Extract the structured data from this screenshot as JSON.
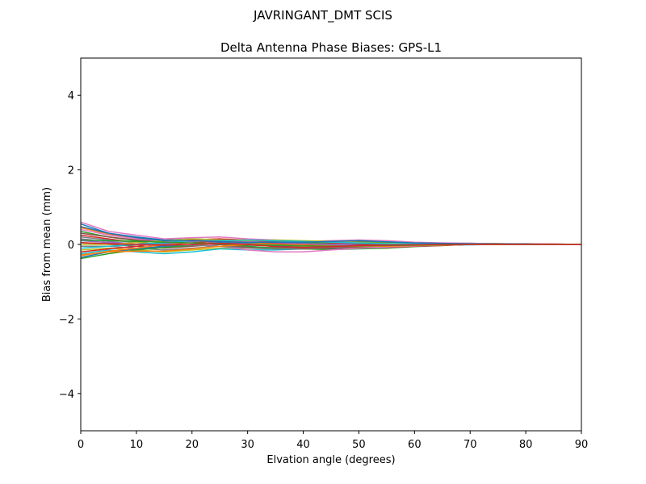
{
  "chart_data": {
    "type": "line",
    "suptitle": "JAVRINGANT_DMT  SCIS",
    "title": "Delta Antenna Phase Biases: GPS-L1",
    "xlabel": "Elvation angle (degrees)",
    "ylabel": "Bias from mean (mm)",
    "xlim": [
      0,
      90
    ],
    "ylim": [
      -5,
      5
    ],
    "xticks": [
      0,
      10,
      20,
      30,
      40,
      50,
      60,
      70,
      80,
      90
    ],
    "yticks": [
      -4,
      -2,
      0,
      2,
      4
    ],
    "grid": false,
    "x": [
      0,
      5,
      10,
      15,
      20,
      25,
      30,
      35,
      40,
      45,
      50,
      55,
      60,
      65,
      70,
      75,
      80,
      85,
      90
    ],
    "series": [
      {
        "color": "#1f77b4",
        "values": [
          0.55,
          0.3,
          0.2,
          0.12,
          0.15,
          0.12,
          0.1,
          0.08,
          0.05,
          0.07,
          0.1,
          0.08,
          0.05,
          0.03,
          0.03,
          0.02,
          0.02,
          0.01,
          0.0
        ]
      },
      {
        "color": "#ff7f0e",
        "values": [
          0.45,
          0.28,
          0.15,
          0.1,
          0.12,
          0.15,
          0.12,
          0.1,
          0.06,
          0.08,
          0.08,
          0.06,
          0.04,
          0.02,
          0.03,
          0.02,
          0.01,
          0.01,
          0.0
        ]
      },
      {
        "color": "#2ca02c",
        "values": [
          0.35,
          0.2,
          0.1,
          0.05,
          0.1,
          0.12,
          0.08,
          0.05,
          0.03,
          0.05,
          0.06,
          0.05,
          0.03,
          0.02,
          0.02,
          0.02,
          0.01,
          0.0,
          0.0
        ]
      },
      {
        "color": "#d62728",
        "values": [
          0.25,
          0.15,
          0.05,
          0.0,
          0.05,
          0.08,
          0.05,
          0.02,
          0.0,
          0.02,
          0.04,
          0.03,
          0.02,
          0.01,
          0.02,
          0.01,
          0.01,
          0.0,
          0.0
        ]
      },
      {
        "color": "#9467bd",
        "values": [
          0.15,
          0.08,
          0.0,
          -0.05,
          0.0,
          0.05,
          0.02,
          0.0,
          -0.02,
          0.0,
          0.02,
          0.02,
          0.01,
          0.0,
          0.01,
          0.01,
          0.0,
          0.0,
          0.0
        ]
      },
      {
        "color": "#8c564b",
        "values": [
          0.05,
          0.0,
          -0.05,
          -0.1,
          -0.05,
          0.0,
          -0.02,
          -0.04,
          -0.05,
          -0.03,
          0.0,
          0.0,
          0.0,
          0.0,
          0.0,
          0.0,
          0.0,
          0.0,
          0.0
        ]
      },
      {
        "color": "#e377c2",
        "values": [
          0.6,
          0.35,
          0.25,
          0.15,
          0.18,
          0.2,
          0.15,
          0.12,
          0.08,
          0.1,
          0.12,
          0.1,
          0.06,
          0.04,
          0.03,
          0.02,
          0.01,
          0.01,
          0.0
        ]
      },
      {
        "color": "#7f7f7f",
        "values": [
          -0.05,
          -0.05,
          -0.1,
          -0.15,
          -0.1,
          -0.05,
          -0.08,
          -0.08,
          -0.08,
          -0.05,
          -0.03,
          -0.02,
          -0.01,
          -0.01,
          0.0,
          0.0,
          0.0,
          0.0,
          0.0
        ]
      },
      {
        "color": "#bcbd22",
        "values": [
          -0.15,
          -0.1,
          -0.15,
          -0.2,
          -0.15,
          -0.1,
          -0.1,
          -0.12,
          -0.1,
          -0.08,
          -0.05,
          -0.04,
          -0.02,
          -0.01,
          0.0,
          0.0,
          0.0,
          0.0,
          0.0
        ]
      },
      {
        "color": "#17becf",
        "values": [
          -0.25,
          -0.15,
          -0.2,
          -0.25,
          -0.2,
          -0.12,
          -0.15,
          -0.15,
          -0.12,
          -0.1,
          -0.08,
          -0.06,
          -0.03,
          -0.02,
          -0.01,
          0.0,
          0.0,
          0.0,
          0.0
        ]
      },
      {
        "color": "#1f77b4",
        "values": [
          -0.35,
          -0.2,
          -0.12,
          -0.05,
          0.0,
          0.05,
          0.0,
          -0.05,
          -0.1,
          -0.12,
          -0.1,
          -0.08,
          -0.05,
          -0.02,
          0.0,
          0.01,
          0.0,
          0.0,
          0.0
        ]
      },
      {
        "color": "#ff7f0e",
        "values": [
          -0.3,
          -0.18,
          -0.1,
          0.0,
          0.08,
          0.1,
          0.05,
          0.0,
          -0.05,
          -0.08,
          -0.08,
          -0.06,
          -0.04,
          -0.02,
          0.0,
          0.01,
          0.0,
          0.0,
          0.0
        ]
      },
      {
        "color": "#2ca02c",
        "values": [
          -0.38,
          -0.25,
          -0.15,
          -0.08,
          -0.02,
          0.0,
          -0.05,
          -0.1,
          -0.12,
          -0.14,
          -0.12,
          -0.1,
          -0.06,
          -0.03,
          0.0,
          0.01,
          0.0,
          0.0,
          0.0
        ]
      },
      {
        "color": "#d62728",
        "values": [
          -0.2,
          -0.12,
          -0.05,
          0.05,
          0.12,
          0.15,
          0.1,
          0.05,
          0.0,
          -0.05,
          -0.08,
          -0.08,
          -0.05,
          -0.03,
          0.0,
          0.01,
          0.0,
          0.0,
          0.0
        ]
      },
      {
        "color": "#9467bd",
        "values": [
          0.1,
          0.05,
          0.0,
          0.02,
          0.08,
          0.12,
          0.08,
          0.05,
          0.02,
          0.0,
          -0.03,
          -0.04,
          -0.03,
          -0.02,
          0.0,
          0.0,
          0.0,
          0.0,
          0.0
        ]
      },
      {
        "color": "#8c564b",
        "values": [
          0.3,
          0.2,
          0.12,
          0.08,
          0.05,
          0.0,
          -0.08,
          -0.12,
          -0.12,
          -0.1,
          -0.08,
          -0.05,
          -0.03,
          -0.01,
          0.0,
          0.0,
          0.0,
          0.0,
          0.0
        ]
      },
      {
        "color": "#e377c2",
        "values": [
          0.4,
          0.25,
          0.15,
          0.1,
          0.05,
          -0.05,
          -0.15,
          -0.2,
          -0.2,
          -0.15,
          -0.1,
          -0.07,
          -0.04,
          -0.02,
          0.0,
          0.0,
          0.0,
          0.0,
          0.0
        ]
      },
      {
        "color": "#7f7f7f",
        "values": [
          0.2,
          0.12,
          0.05,
          0.0,
          -0.02,
          -0.05,
          -0.1,
          -0.12,
          -0.1,
          -0.07,
          -0.05,
          -0.03,
          -0.02,
          -0.01,
          0.0,
          0.0,
          0.0,
          0.0,
          0.0
        ]
      },
      {
        "color": "#bcbd22",
        "values": [
          0.0,
          0.0,
          0.05,
          0.1,
          0.15,
          0.12,
          0.1,
          0.12,
          0.1,
          0.08,
          0.05,
          0.03,
          0.02,
          0.01,
          0.0,
          0.0,
          0.0,
          0.0,
          0.0
        ]
      },
      {
        "color": "#17becf",
        "values": [
          -0.1,
          -0.05,
          0.0,
          0.05,
          0.1,
          0.1,
          0.12,
          0.1,
          0.08,
          0.06,
          0.04,
          0.02,
          0.01,
          0.0,
          0.0,
          0.0,
          0.0,
          0.0,
          0.0
        ]
      },
      {
        "color": "#1f77b4",
        "values": [
          0.48,
          0.3,
          0.18,
          0.1,
          0.1,
          0.08,
          0.05,
          0.06,
          0.06,
          0.08,
          0.1,
          0.07,
          0.04,
          0.03,
          0.02,
          0.01,
          0.01,
          0.0,
          0.0
        ]
      },
      {
        "color": "#ff7f0e",
        "values": [
          -0.28,
          -0.2,
          -0.18,
          -0.18,
          -0.12,
          -0.05,
          0.0,
          0.0,
          -0.02,
          -0.04,
          -0.05,
          -0.05,
          -0.03,
          -0.02,
          0.0,
          0.0,
          0.0,
          0.0,
          0.0
        ]
      },
      {
        "color": "#2ca02c",
        "values": [
          0.12,
          0.1,
          0.08,
          0.06,
          0.04,
          0.02,
          0.0,
          -0.02,
          -0.04,
          -0.05,
          -0.04,
          -0.03,
          -0.02,
          -0.01,
          0.0,
          0.0,
          0.0,
          0.0,
          0.0
        ]
      },
      {
        "color": "#d62728",
        "values": [
          0.05,
          0.02,
          0.0,
          -0.02,
          0.0,
          0.03,
          0.0,
          -0.06,
          -0.08,
          -0.06,
          -0.03,
          -0.02,
          -0.01,
          0.0,
          0.0,
          0.0,
          0.0,
          0.0,
          0.0
        ]
      }
    ]
  }
}
